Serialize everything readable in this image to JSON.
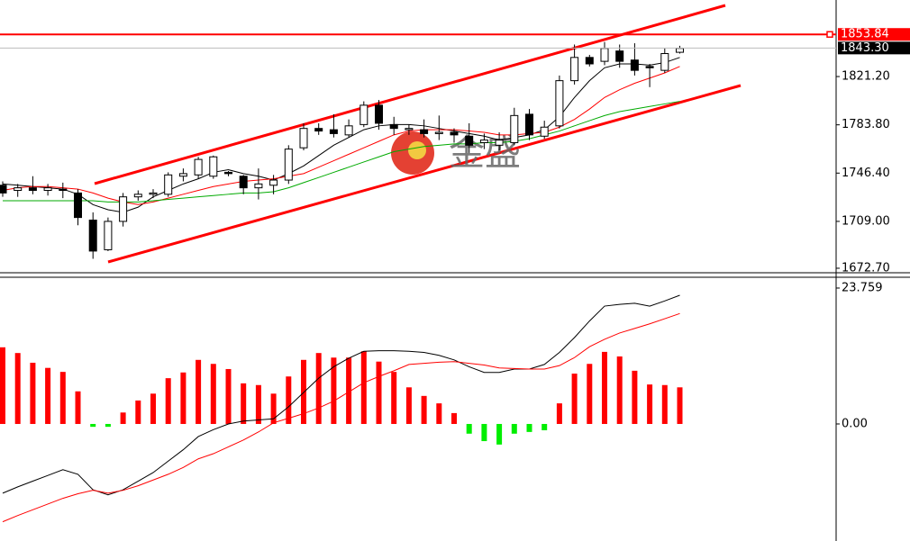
{
  "chart_data": [
    {
      "type": "candlestick",
      "open": [
        1737,
        1733,
        1735,
        1733,
        1734,
        1731,
        1710,
        1687,
        1709,
        1728,
        1730,
        1730,
        1744,
        1745,
        1744,
        1747,
        1744,
        1735,
        1737,
        1741,
        1766,
        1781,
        1780,
        1776,
        1784,
        1799,
        1784,
        1780,
        1780,
        1777,
        1778,
        1775,
        1770,
        1768,
        1770,
        1792,
        1775,
        1783,
        1818,
        1836,
        1833,
        1841,
        1834,
        1829,
        1826,
        1840
      ],
      "high": [
        1740,
        1738,
        1744,
        1738,
        1739,
        1734,
        1716,
        1712,
        1731,
        1733,
        1734,
        1747,
        1750,
        1759,
        1760,
        1748,
        1745,
        1750,
        1745,
        1768,
        1785,
        1785,
        1792,
        1788,
        1802,
        1803,
        1790,
        1784,
        1788,
        1791,
        1781,
        1785,
        1777,
        1778,
        1797,
        1796,
        1787,
        1822,
        1846,
        1838,
        1848,
        1846,
        1847,
        1831,
        1843,
        1845
      ],
      "low": [
        1728,
        1728,
        1730,
        1729,
        1727,
        1706,
        1680,
        1686,
        1705,
        1725,
        1727,
        1728,
        1740,
        1742,
        1742,
        1744,
        1730,
        1726,
        1730,
        1738,
        1764,
        1776,
        1774,
        1774,
        1782,
        1780,
        1776,
        1776,
        1774,
        1772,
        1770,
        1762,
        1765,
        1764,
        1768,
        1772,
        1773,
        1781,
        1815,
        1829,
        1830,
        1828,
        1822,
        1813,
        1824,
        1839
      ],
      "close": [
        1731,
        1735,
        1733,
        1735,
        1733,
        1712,
        1686,
        1709,
        1728,
        1730,
        1731,
        1745,
        1746,
        1757,
        1759,
        1746,
        1735,
        1738,
        1741,
        1765,
        1781,
        1779,
        1777,
        1783,
        1799,
        1785,
        1781,
        1781,
        1777,
        1778,
        1776,
        1768,
        1772,
        1772,
        1791,
        1776,
        1782,
        1818,
        1836,
        1831,
        1843,
        1833,
        1826,
        1828,
        1839,
        1843
      ],
      "up_color": "#ffffff",
      "down_color": "#000000",
      "series": [
        {
          "color": "#000000",
          "values": [
            1738,
            1737,
            1736,
            1735,
            1734,
            1730,
            1722,
            1718,
            1716,
            1720,
            1728,
            1733,
            1738,
            1742,
            1747,
            1749,
            1746,
            1744,
            1741,
            1746,
            1752,
            1760,
            1768,
            1774,
            1780,
            1783,
            1784,
            1784,
            1783,
            1781,
            1779,
            1777,
            1775,
            1772,
            1774,
            1776,
            1780,
            1790,
            1805,
            1818,
            1828,
            1831,
            1831,
            1830,
            1832,
            1836
          ]
        },
        {
          "color": "#ff0000",
          "values": [
            1733,
            1735,
            1736,
            1736,
            1735,
            1734,
            1731,
            1727,
            1724,
            1722,
            1724,
            1727,
            1730,
            1733,
            1736,
            1738,
            1740,
            1741,
            1742,
            1744,
            1746,
            1751,
            1756,
            1761,
            1766,
            1771,
            1776,
            1779,
            1780,
            1780,
            1780,
            1779,
            1778,
            1776,
            1776,
            1777,
            1778,
            1782,
            1788,
            1796,
            1805,
            1811,
            1816,
            1820,
            1824,
            1829
          ]
        },
        {
          "color": "#00aa00",
          "values": [
            1725,
            1725,
            1725,
            1725,
            1725,
            1725,
            1725,
            1724,
            1724,
            1724,
            1725,
            1726,
            1727,
            1728,
            1729,
            1730,
            1731,
            1731,
            1732,
            1735,
            1739,
            1743,
            1747,
            1751,
            1755,
            1759,
            1763,
            1765,
            1767,
            1768,
            1769,
            1769,
            1770,
            1770,
            1771,
            1773,
            1776,
            1779,
            1783,
            1787,
            1791,
            1794,
            1796,
            1798,
            1800,
            1802
          ]
        }
      ],
      "ylim": [
        1669.2,
        1880.5
      ],
      "yticks": [
        {
          "value": 1672.7,
          "label": "1672.70"
        },
        {
          "value": 1709,
          "label": "1709.00"
        },
        {
          "value": 1746.4,
          "label": "1746.40"
        },
        {
          "value": 1783.8,
          "label": "1783.80"
        },
        {
          "value": 1821.2,
          "label": "1821.20"
        }
      ],
      "price_line": {
        "value": 1853.84,
        "color": "#ff0000"
      },
      "last_price": {
        "value": 1843.3,
        "label": "1843.30"
      },
      "watermark": "金盛"
    },
    {
      "type": "bar",
      "values": [
        13.4,
        12.4,
        10.7,
        9.8,
        9.1,
        5.7,
        -0.5,
        -0.5,
        2.0,
        4.1,
        5.3,
        8.0,
        9.0,
        11.2,
        10.5,
        9.6,
        7.1,
        6.8,
        5.3,
        8.3,
        11.2,
        12.4,
        11.6,
        11.6,
        12.7,
        10.9,
        9.1,
        6.4,
        4.9,
        3.6,
        1.9,
        -1.7,
        -3.0,
        -3.6,
        -1.7,
        -1.4,
        -1.1,
        3.6,
        8.8,
        10.5,
        12.6,
        11.8,
        9.3,
        6.9,
        6.8,
        6.4
      ],
      "positive_color": "#ff0000",
      "negative_color": "#00ee00",
      "series": [
        {
          "color": "#000000",
          "values": [
            -12.1,
            -11.0,
            -10.0,
            -9.0,
            -8.0,
            -8.8,
            -11.5,
            -12.4,
            -11.5,
            -10.0,
            -8.5,
            -6.5,
            -4.5,
            -2.2,
            -1.0,
            0.0,
            0.5,
            0.7,
            0.9,
            3.0,
            5.5,
            8.0,
            10.0,
            11.5,
            12.7,
            12.8,
            12.8,
            12.7,
            12.5,
            12.0,
            11.2,
            10.0,
            9.0,
            9.0,
            9.6,
            9.6,
            10.4,
            12.5,
            15.1,
            18.0,
            20.6,
            20.9,
            21.1,
            20.6,
            21.5,
            22.5
          ]
        },
        {
          "color": "#ff0000",
          "values": [
            -17.1,
            -16.0,
            -15.0,
            -14.0,
            -13.0,
            -12.2,
            -11.6,
            -12.1,
            -11.6,
            -10.8,
            -9.8,
            -8.8,
            -7.6,
            -6.1,
            -5.2,
            -4.0,
            -2.8,
            -1.4,
            0.2,
            1.0,
            1.8,
            2.8,
            4.0,
            5.6,
            7.2,
            8.3,
            9.3,
            10.4,
            10.6,
            10.8,
            10.9,
            10.6,
            10.3,
            9.8,
            9.7,
            9.6,
            9.6,
            10.2,
            11.6,
            13.5,
            14.8,
            15.9,
            16.7,
            17.5,
            18.4,
            19.3
          ]
        }
      ],
      "ylim": [
        -20.46,
        25.33
      ],
      "yticks": [
        {
          "value": 0,
          "label": "0.00"
        },
        23.759
      ]
    }
  ]
}
